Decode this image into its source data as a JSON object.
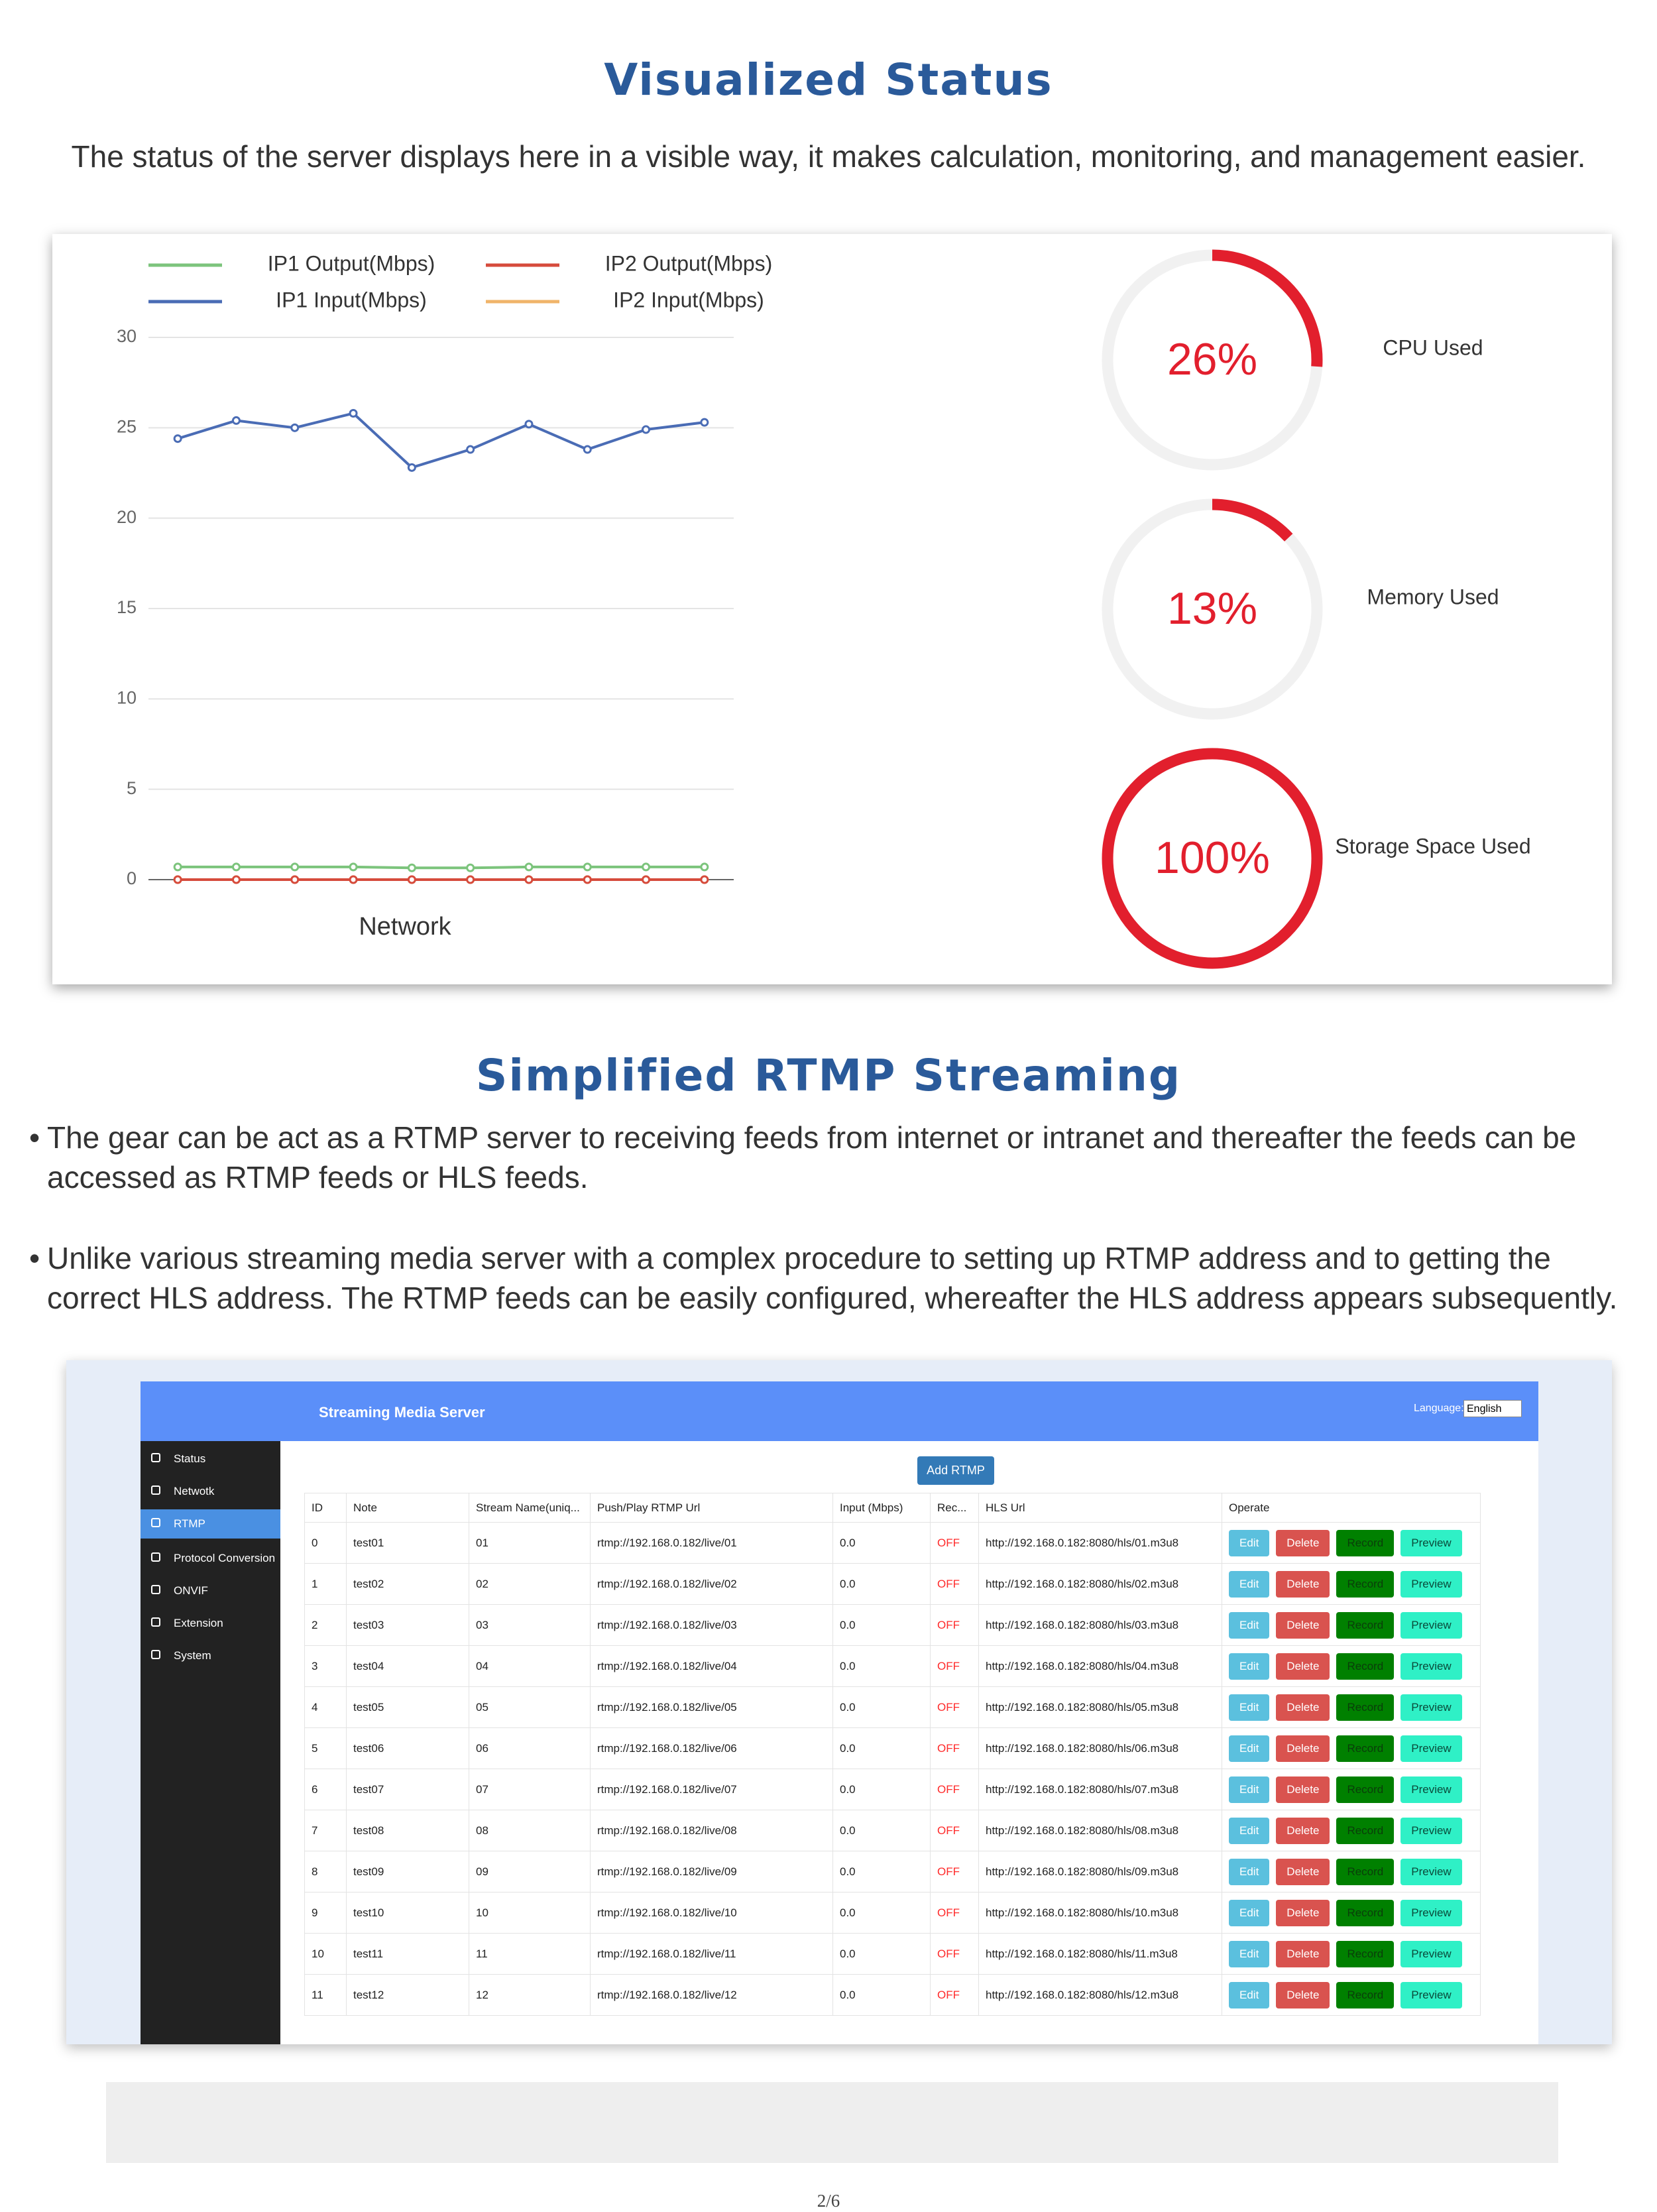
{
  "section1": {
    "title": "Visualized Status",
    "description": "The status of the server displays here in a visible way, it makes calculation, monitoring, and management easier."
  },
  "chart_data": [
    {
      "type": "line",
      "x_label": "Network",
      "categories": [
        null,
        null,
        null,
        null,
        null,
        null,
        null,
        null,
        null,
        null
      ],
      "ylim": [
        0,
        30
      ],
      "yticks": [
        0,
        5,
        10,
        15,
        20,
        25,
        30
      ],
      "grid": true,
      "series": [
        {
          "name": "IP1 Output(Mbps)",
          "color": "#7cc47c",
          "values": [
            0.7,
            0.7,
            0.7,
            0.7,
            0.65,
            0.65,
            0.7,
            0.7,
            0.7,
            0.7
          ]
        },
        {
          "name": "IP2 Output(Mbps)",
          "color": "#d64b3c",
          "values": [
            0,
            0,
            0,
            0,
            0,
            0,
            0,
            0,
            0,
            0
          ]
        },
        {
          "name": "IP1 Input(Mbps)",
          "color": "#4a6cb5",
          "values": [
            24.4,
            25.4,
            25.0,
            25.8,
            22.8,
            23.8,
            25.2,
            23.8,
            24.9,
            25.3
          ]
        },
        {
          "name": "IP2 Input(Mbps)",
          "color": "#f0b46a",
          "values": [
            0,
            0,
            0,
            0,
            0,
            0,
            0,
            0,
            0,
            0
          ]
        }
      ]
    },
    {
      "type": "gauge",
      "color": "#e21f2d",
      "track_color": "#f1f1f1",
      "categories": [
        "CPU Used",
        "Memory Used",
        "Storage Space Used"
      ],
      "values": [
        26,
        13,
        100
      ],
      "value_labels": [
        "26%",
        "13%",
        "100%"
      ]
    }
  ],
  "section2": {
    "title": "Simplified RTMP Streaming",
    "bullets": [
      "The gear can be act as a RTMP server to receiving feeds from internet or intranet and thereafter the feeds can be accessed as RTMP feeds or HLS feeds.",
      "Unlike various streaming media server with a complex procedure to setting up RTMP address and to getting the correct HLS address. The RTMP feeds can be easily configured, whereafter the HLS address appears subsequently."
    ]
  },
  "screenshot": {
    "app_title": "Streaming Media Server",
    "language_label": "Language:",
    "language_value": "English",
    "sidebar": [
      "Status",
      "Netwotk",
      "RTMP",
      "Protocol Conversion",
      "ONVIF",
      "Extension",
      "System"
    ],
    "add_button": "Add RTMP",
    "table": {
      "headers": [
        "ID",
        "Note",
        "Stream Name(uniq...",
        "Push/Play RTMP Url",
        "Input (Mbps)",
        "Rec...",
        "HLS Url",
        "Operate"
      ],
      "actions": [
        "Edit",
        "Delete",
        "Record",
        "Preview"
      ],
      "rows": [
        [
          "0",
          "test01",
          "01",
          "rtmp://192.168.0.182/live/01",
          "0.0",
          "OFF",
          "http://192.168.0.182:8080/hls/01.m3u8"
        ],
        [
          "1",
          "test02",
          "02",
          "rtmp://192.168.0.182/live/02",
          "0.0",
          "OFF",
          "http://192.168.0.182:8080/hls/02.m3u8"
        ],
        [
          "2",
          "test03",
          "03",
          "rtmp://192.168.0.182/live/03",
          "0.0",
          "OFF",
          "http://192.168.0.182:8080/hls/03.m3u8"
        ],
        [
          "3",
          "test04",
          "04",
          "rtmp://192.168.0.182/live/04",
          "0.0",
          "OFF",
          "http://192.168.0.182:8080/hls/04.m3u8"
        ],
        [
          "4",
          "test05",
          "05",
          "rtmp://192.168.0.182/live/05",
          "0.0",
          "OFF",
          "http://192.168.0.182:8080/hls/05.m3u8"
        ],
        [
          "5",
          "test06",
          "06",
          "rtmp://192.168.0.182/live/06",
          "0.0",
          "OFF",
          "http://192.168.0.182:8080/hls/06.m3u8"
        ],
        [
          "6",
          "test07",
          "07",
          "rtmp://192.168.0.182/live/07",
          "0.0",
          "OFF",
          "http://192.168.0.182:8080/hls/07.m3u8"
        ],
        [
          "7",
          "test08",
          "08",
          "rtmp://192.168.0.182/live/08",
          "0.0",
          "OFF",
          "http://192.168.0.182:8080/hls/08.m3u8"
        ],
        [
          "8",
          "test09",
          "09",
          "rtmp://192.168.0.182/live/09",
          "0.0",
          "OFF",
          "http://192.168.0.182:8080/hls/09.m3u8"
        ],
        [
          "9",
          "test10",
          "10",
          "rtmp://192.168.0.182/live/10",
          "0.0",
          "OFF",
          "http://192.168.0.182:8080/hls/10.m3u8"
        ],
        [
          "10",
          "test11",
          "11",
          "rtmp://192.168.0.182/live/11",
          "0.0",
          "OFF",
          "http://192.168.0.182:8080/hls/11.m3u8"
        ],
        [
          "11",
          "test12",
          "12",
          "rtmp://192.168.0.182/live/12",
          "0.0",
          "OFF",
          "http://192.168.0.182:8080/hls/12.m3u8"
        ]
      ]
    }
  },
  "footer": {
    "page": "2/6"
  }
}
